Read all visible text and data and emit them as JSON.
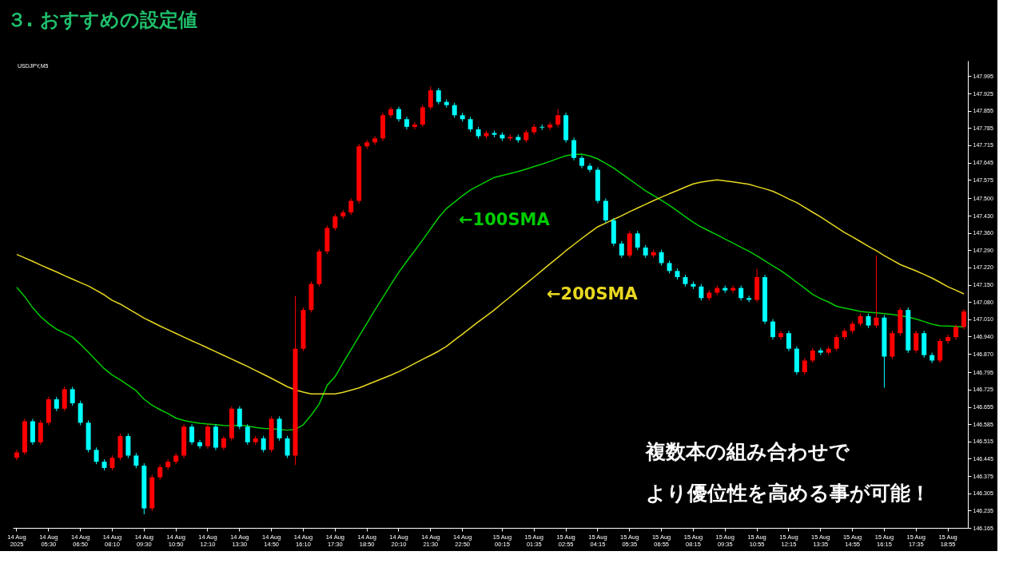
{
  "chart_data": {
    "type": "candlestick",
    "title": "３. おすすめの設定値",
    "subtitle": "USDJPY,M5",
    "categories": [
      "14 Aug 2025",
      null,
      null,
      null,
      "14 Aug 05:30",
      null,
      null,
      null,
      "14 Aug 06:50",
      null,
      null,
      null,
      "14 Aug 08:10",
      null,
      null,
      null,
      "14 Aug 09:30",
      null,
      null,
      null,
      "14 Aug 10:50",
      null,
      null,
      null,
      "14 Aug 12:10",
      null,
      null,
      null,
      "14 Aug 13:30",
      null,
      null,
      null,
      "14 Aug 14:50",
      null,
      null,
      null,
      "14 Aug 16:10",
      null,
      null,
      null,
      "14 Aug 17:30",
      null,
      null,
      null,
      "14 Aug 18:50",
      null,
      null,
      null,
      "14 Aug 20:10",
      null,
      null,
      null,
      "14 Aug 21:30",
      null,
      null,
      null,
      "14 Aug 22:50",
      null,
      null,
      null,
      null,
      "15 Aug 00:15",
      null,
      null,
      null,
      "15 Aug 01:35",
      null,
      null,
      null,
      "15 Aug 02:55",
      null,
      null,
      null,
      "15 Aug 04:15",
      null,
      null,
      null,
      "15 Aug 05:35",
      null,
      null,
      null,
      "15 Aug 06:55",
      null,
      null,
      null,
      "15 Aug 08:15",
      null,
      null,
      null,
      "15 Aug 09:35",
      null,
      null,
      null,
      "15 Aug 10:55",
      null,
      null,
      null,
      "15 Aug 12:15",
      null,
      null,
      null,
      "15 Aug 13:35",
      null,
      null,
      null,
      "15 Aug 14:55",
      null,
      null,
      null,
      "15 Aug 16:15",
      null,
      null,
      null,
      "15 Aug 17:35",
      null,
      null,
      null,
      "15 Aug 18:55",
      null,
      null
    ],
    "ohlc": [
      [
        146.449,
        146.481,
        146.439,
        146.471
      ],
      [
        146.471,
        146.607,
        146.461,
        146.597
      ],
      [
        146.597,
        146.607,
        146.502,
        146.512
      ],
      [
        146.512,
        146.601,
        146.502,
        146.591
      ],
      [
        146.591,
        146.696,
        146.581,
        146.686
      ],
      [
        146.686,
        146.696,
        146.638,
        146.648
      ],
      [
        146.648,
        146.737,
        146.638,
        146.727
      ],
      [
        146.727,
        146.737,
        146.66,
        146.67
      ],
      [
        146.67,
        146.68,
        146.581,
        146.591
      ],
      [
        146.591,
        146.601,
        146.471,
        146.481
      ],
      [
        146.481,
        146.491,
        146.423,
        146.433
      ],
      [
        146.433,
        146.443,
        146.398,
        146.408
      ],
      [
        146.408,
        146.459,
        146.398,
        146.449
      ],
      [
        146.449,
        146.547,
        146.439,
        146.537
      ],
      [
        146.537,
        146.547,
        146.448,
        146.458
      ],
      [
        146.458,
        146.468,
        146.407,
        146.417
      ],
      [
        146.417,
        146.427,
        146.22,
        146.244
      ],
      [
        146.244,
        146.38,
        146.234,
        146.37
      ],
      [
        146.37,
        146.421,
        146.36,
        146.411
      ],
      [
        146.411,
        146.443,
        146.401,
        146.433
      ],
      [
        146.433,
        146.468,
        146.423,
        146.458
      ],
      [
        146.458,
        146.585,
        146.448,
        146.575
      ],
      [
        146.575,
        146.585,
        146.502,
        146.512
      ],
      [
        146.512,
        146.522,
        146.486,
        146.496
      ],
      [
        146.496,
        146.585,
        146.486,
        146.575
      ],
      [
        146.575,
        146.585,
        146.48,
        146.49
      ],
      [
        146.49,
        146.538,
        146.48,
        146.528
      ],
      [
        146.528,
        146.658,
        146.518,
        146.648
      ],
      [
        146.648,
        146.658,
        146.565,
        146.575
      ],
      [
        146.575,
        146.585,
        146.502,
        146.512
      ],
      [
        146.512,
        146.538,
        146.502,
        146.528
      ],
      [
        146.528,
        146.538,
        146.471,
        146.481
      ],
      [
        146.481,
        146.617,
        146.471,
        146.607
      ],
      [
        146.607,
        146.617,
        146.518,
        146.528
      ],
      [
        146.528,
        146.538,
        146.448,
        146.458
      ],
      [
        146.458,
        147.105,
        146.42,
        146.891
      ],
      [
        146.891,
        147.058,
        146.881,
        147.048
      ],
      [
        147.048,
        147.163,
        147.038,
        147.153
      ],
      [
        147.153,
        147.295,
        147.143,
        147.285
      ],
      [
        147.285,
        147.39,
        147.275,
        147.38
      ],
      [
        147.38,
        147.437,
        147.37,
        147.427
      ],
      [
        147.427,
        147.453,
        147.417,
        147.443
      ],
      [
        147.443,
        147.5,
        147.433,
        147.49
      ],
      [
        147.49,
        147.721,
        147.48,
        147.711
      ],
      [
        147.711,
        147.737,
        147.701,
        147.727
      ],
      [
        147.727,
        147.753,
        147.717,
        147.743
      ],
      [
        147.743,
        147.847,
        147.733,
        147.837
      ],
      [
        147.837,
        147.872,
        147.827,
        147.862
      ],
      [
        147.862,
        147.872,
        147.811,
        147.821
      ],
      [
        147.821,
        147.831,
        147.78,
        147.79
      ],
      [
        147.79,
        147.809,
        147.78,
        147.799
      ],
      [
        147.799,
        147.879,
        147.789,
        147.869
      ],
      [
        147.869,
        147.954,
        147.859,
        147.938
      ],
      [
        147.938,
        147.948,
        147.881,
        147.891
      ],
      [
        147.891,
        147.901,
        147.868,
        147.878
      ],
      [
        147.878,
        147.888,
        147.827,
        147.837
      ],
      [
        147.837,
        147.847,
        147.811,
        147.821
      ],
      [
        147.821,
        147.831,
        147.77,
        147.78
      ],
      [
        147.78,
        147.79,
        147.742,
        147.752
      ],
      [
        147.752,
        147.775,
        147.742,
        147.765
      ],
      [
        147.765,
        147.775,
        147.748,
        147.758
      ],
      [
        147.758,
        147.768,
        147.733,
        147.743
      ],
      [
        147.743,
        147.759,
        147.733,
        147.749
      ],
      [
        147.749,
        147.759,
        147.726,
        147.736
      ],
      [
        147.736,
        147.778,
        147.726,
        147.768
      ],
      [
        147.768,
        147.8,
        147.758,
        147.79
      ],
      [
        147.79,
        147.8,
        147.777,
        147.787
      ],
      [
        147.787,
        147.809,
        147.777,
        147.799
      ],
      [
        147.799,
        147.862,
        147.789,
        147.837
      ],
      [
        147.837,
        147.847,
        147.726,
        147.736
      ],
      [
        147.736,
        147.746,
        147.654,
        147.664
      ],
      [
        147.664,
        147.674,
        147.622,
        147.632
      ],
      [
        147.632,
        147.642,
        147.606,
        147.616
      ],
      [
        147.616,
        147.626,
        147.48,
        147.49
      ],
      [
        147.49,
        147.5,
        147.401,
        147.411
      ],
      [
        147.411,
        147.421,
        147.307,
        147.317
      ],
      [
        147.317,
        147.327,
        147.259,
        147.269
      ],
      [
        147.269,
        147.368,
        147.259,
        147.358
      ],
      [
        147.358,
        147.368,
        147.291,
        147.301
      ],
      [
        147.301,
        147.311,
        147.259,
        147.269
      ],
      [
        147.269,
        147.292,
        147.259,
        147.282
      ],
      [
        147.282,
        147.292,
        147.228,
        147.238
      ],
      [
        147.238,
        147.248,
        147.196,
        147.206
      ],
      [
        147.206,
        147.216,
        147.171,
        147.181
      ],
      [
        147.181,
        147.191,
        147.143,
        147.153
      ],
      [
        147.153,
        147.163,
        147.133,
        147.143
      ],
      [
        147.143,
        147.153,
        147.086,
        147.096
      ],
      [
        147.096,
        147.128,
        147.086,
        147.118
      ],
      [
        147.118,
        147.147,
        147.108,
        147.137
      ],
      [
        147.137,
        147.147,
        147.117,
        147.127
      ],
      [
        147.127,
        147.147,
        147.117,
        147.137
      ],
      [
        147.137,
        147.147,
        147.086,
        147.096
      ],
      [
        147.096,
        147.106,
        147.079,
        147.089
      ],
      [
        147.089,
        147.215,
        147.079,
        147.181
      ],
      [
        147.181,
        147.191,
        146.991,
        147.001
      ],
      [
        147.001,
        147.011,
        146.928,
        146.938
      ],
      [
        146.938,
        146.964,
        146.928,
        146.954
      ],
      [
        146.954,
        146.964,
        146.881,
        146.891
      ],
      [
        146.891,
        146.901,
        146.786,
        146.796
      ],
      [
        146.796,
        146.853,
        146.786,
        146.843
      ],
      [
        146.843,
        146.894,
        146.833,
        146.884
      ],
      [
        146.884,
        146.894,
        146.865,
        146.875
      ],
      [
        146.875,
        146.901,
        146.865,
        146.891
      ],
      [
        146.891,
        146.948,
        146.881,
        146.938
      ],
      [
        146.938,
        146.973,
        146.928,
        146.963
      ],
      [
        146.963,
        147.002,
        146.953,
        146.992
      ],
      [
        146.992,
        147.033,
        146.982,
        147.023
      ],
      [
        147.023,
        147.033,
        146.975,
        146.985
      ],
      [
        146.985,
        147.269,
        146.975,
        147.017
      ],
      [
        147.017,
        147.027,
        146.733,
        146.859
      ],
      [
        146.859,
        146.964,
        146.849,
        146.954
      ],
      [
        146.954,
        147.058,
        146.944,
        147.048
      ],
      [
        147.048,
        147.058,
        146.874,
        146.884
      ],
      [
        146.884,
        146.964,
        146.874,
        146.954
      ],
      [
        146.954,
        146.964,
        146.855,
        146.865
      ],
      [
        146.865,
        146.875,
        146.833,
        146.843
      ],
      [
        146.843,
        146.932,
        146.833,
        146.922
      ],
      [
        146.922,
        146.948,
        146.912,
        146.938
      ],
      [
        146.938,
        146.989,
        146.928,
        146.979
      ],
      [
        146.979,
        147.052,
        146.969,
        147.042
      ]
    ],
    "colors": [
      "#ff0000",
      "#ff0000",
      "#00ffff",
      "#ff0000",
      "#ff0000",
      "#00ffff",
      "#ff0000",
      "#00ffff",
      "#00ffff",
      "#00ffff",
      "#00ffff",
      "#00ffff",
      "#ff0000",
      "#ff0000",
      "#00ffff",
      "#00ffff",
      "#00ffff",
      "#ff0000",
      "#ff0000",
      "#ff0000",
      "#ff0000",
      "#ff0000",
      "#00ffff",
      "#00ffff",
      "#ff0000",
      "#00ffff",
      "#ff0000",
      "#ff0000",
      "#00ffff",
      "#00ffff",
      "#ff0000",
      "#00ffff",
      "#ff0000",
      "#00ffff",
      "#00ffff",
      "#ff0000",
      "#ff0000",
      "#ff0000",
      "#ff0000",
      "#ff0000",
      "#ff0000",
      "#ff0000",
      "#ff0000",
      "#ff0000",
      "#ff0000",
      "#ff0000",
      "#ff0000",
      "#ff0000",
      "#00ffff",
      "#00ffff",
      "#ff0000",
      "#ff0000",
      "#ff0000",
      "#00ffff",
      "#00ffff",
      "#00ffff",
      "#00ffff",
      "#00ffff",
      "#00ffff",
      "#ff0000",
      "#00ffff",
      "#00ffff",
      "#ff0000",
      "#00ffff",
      "#ff0000",
      "#ff0000",
      "#00ffff",
      "#ff0000",
      "#ff0000",
      "#00ffff",
      "#00ffff",
      "#00ffff",
      "#00ffff",
      "#00ffff",
      "#00ffff",
      "#00ffff",
      "#00ffff",
      "#ff0000",
      "#00ffff",
      "#00ffff",
      "#ff0000",
      "#00ffff",
      "#00ffff",
      "#00ffff",
      "#00ffff",
      "#00ffff",
      "#00ffff",
      "#ff0000",
      "#ff0000",
      "#00ffff",
      "#ff0000",
      "#00ffff",
      "#00ffff",
      "#ff0000",
      "#00ffff",
      "#00ffff",
      "#ff0000",
      "#00ffff",
      "#00ffff",
      "#ff0000",
      "#ff0000",
      "#00ffff",
      "#ff0000",
      "#ff0000",
      "#ff0000",
      "#ff0000",
      "#ff0000",
      "#00ffff",
      "#ff0000",
      "#00ffff",
      "#ff0000",
      "#ff0000",
      "#00ffff",
      "#ff0000",
      "#00ffff",
      "#00ffff",
      "#ff0000",
      "#ff0000",
      "#ff0000",
      "#ff0000"
    ],
    "series": [
      {
        "type": "line",
        "color": "#00cc00",
        "values": [
          147.14,
          147.102,
          147.057,
          147.021,
          146.993,
          146.97,
          146.954,
          146.938,
          146.909,
          146.877,
          146.843,
          146.81,
          146.784,
          146.765,
          146.743,
          146.721,
          146.686,
          146.662,
          146.644,
          146.628,
          146.61,
          146.6,
          146.594,
          146.589,
          146.586,
          146.583,
          146.58,
          146.579,
          146.581,
          146.578,
          146.572,
          146.568,
          146.567,
          146.564,
          146.561,
          146.564,
          146.583,
          146.622,
          146.667,
          146.743,
          146.778,
          146.834,
          146.887,
          146.941,
          146.994,
          147.048,
          147.099,
          147.151,
          147.201,
          147.245,
          147.288,
          147.332,
          147.377,
          147.422,
          147.459,
          147.485,
          147.511,
          147.534,
          147.551,
          147.568,
          147.585,
          147.593,
          147.601,
          147.609,
          147.619,
          147.629,
          147.639,
          147.65,
          147.662,
          147.673,
          147.678,
          147.679,
          147.672,
          147.66,
          147.642,
          147.623,
          147.6,
          147.577,
          147.554,
          147.531,
          147.512,
          147.492,
          147.472,
          147.449,
          147.426,
          147.403,
          147.384,
          147.368,
          147.352,
          147.335,
          147.319,
          147.302,
          147.286,
          147.267,
          147.247,
          147.227,
          147.207,
          147.185,
          147.16,
          147.136,
          147.111,
          147.094,
          147.08,
          147.063,
          147.056,
          147.049,
          147.042,
          147.039,
          147.036,
          147.033,
          147.03,
          147.025,
          147.019,
          147.011,
          147.001,
          146.99,
          146.984,
          146.983,
          146.981,
          146.979
        ]
      },
      {
        "type": "line",
        "color": "#e8d820",
        "values": [
          147.273,
          147.259,
          147.245,
          147.23,
          147.216,
          147.202,
          147.187,
          147.173,
          147.159,
          147.145,
          147.127,
          147.109,
          147.087,
          147.072,
          147.053,
          147.034,
          147.015,
          146.999,
          146.983,
          146.968,
          146.953,
          146.938,
          146.923,
          146.909,
          146.894,
          146.879,
          146.864,
          146.849,
          146.834,
          146.819,
          146.803,
          146.787,
          146.771,
          146.754,
          146.737,
          146.724,
          146.715,
          146.708,
          146.708,
          146.708,
          146.708,
          146.714,
          146.723,
          146.732,
          146.745,
          146.758,
          146.771,
          146.784,
          146.798,
          146.814,
          146.831,
          146.848,
          146.864,
          146.881,
          146.901,
          146.926,
          146.95,
          146.975,
          147.0,
          147.024,
          147.048,
          147.075,
          147.101,
          147.128,
          147.155,
          147.181,
          147.208,
          147.235,
          147.261,
          147.288,
          147.313,
          147.338,
          147.362,
          147.385,
          147.4,
          147.415,
          147.43,
          147.446,
          147.461,
          147.476,
          147.491,
          147.505,
          147.519,
          147.532,
          147.546,
          147.559,
          147.566,
          147.571,
          147.575,
          147.571,
          147.567,
          147.562,
          147.557,
          147.548,
          147.539,
          147.529,
          147.514,
          147.498,
          147.483,
          147.464,
          147.444,
          147.425,
          147.404,
          147.383,
          147.362,
          147.344,
          147.325,
          147.306,
          147.288,
          147.268,
          147.25,
          147.232,
          147.219,
          147.206,
          147.192,
          147.177,
          147.16,
          147.142,
          147.128,
          147.113
        ]
      }
    ],
    "annotations": [
      "←100SMA",
      "←200SMA",
      "複数本の組み合わせで",
      "より優位性を高める事が可能！"
    ],
    "ylim": [
      146.165,
      148.058
    ],
    "yticks": [
      146.165,
      146.235,
      146.305,
      146.375,
      146.445,
      146.515,
      146.585,
      146.655,
      146.725,
      146.795,
      {
        "value": 146.87,
        "label": "146.870"
      },
      {
        "value": 146.94,
        "label": "146.940"
      },
      {
        "value": 147.01,
        "label": "147.010"
      },
      {
        "value": 147.08,
        "label": "147.080"
      },
      {
        "value": 147.15,
        "label": "147.150"
      },
      {
        "value": 147.22,
        "label": "147.220"
      },
      {
        "value": 147.29,
        "label": "147.290"
      },
      {
        "value": 147.36,
        "label": "147.360"
      },
      {
        "value": 147.43,
        "label": "147.430"
      },
      {
        "value": 147.5,
        "label": "147.500"
      },
      147.575,
      147.645,
      147.715,
      147.785,
      147.855,
      147.925,
      147.995
    ],
    "grid": false
  }
}
